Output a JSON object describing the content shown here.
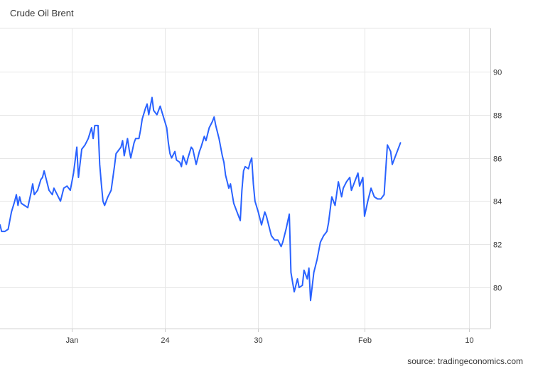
{
  "title": "Crude Oil Brent",
  "source": "source: tradingeconomics.com",
  "colors": {
    "line": "#2962ff",
    "grid": "#e6e6e6",
    "text": "#333333",
    "axis": "#cccccc"
  },
  "chart_data": {
    "type": "line",
    "title": "Crude Oil Brent",
    "xlabel": "",
    "ylabel": "",
    "ylim": [
      78.1,
      92
    ],
    "yticks": [
      80,
      82,
      84,
      86,
      88,
      90
    ],
    "ytick_labels": [
      "80",
      "82",
      "84",
      "86",
      "88",
      "90"
    ],
    "xlim": [
      0,
      30
    ],
    "xtick_labels": [
      {
        "x": 4.4,
        "label": "Jan"
      },
      {
        "x": 10.1,
        "label": "24"
      },
      {
        "x": 15.8,
        "label": "30"
      },
      {
        "x": 22.3,
        "label": "Feb"
      },
      {
        "x": 28.7,
        "label": "10"
      }
    ],
    "grid": true,
    "series": [
      {
        "values": [
          [
            0.0,
            82.9
          ],
          [
            0.1,
            82.6
          ],
          [
            0.3,
            82.6
          ],
          [
            0.5,
            82.7
          ],
          [
            0.7,
            83.5
          ],
          [
            0.9,
            84.0
          ],
          [
            1.0,
            84.3
          ],
          [
            1.1,
            83.8
          ],
          [
            1.2,
            84.2
          ],
          [
            1.3,
            83.9
          ],
          [
            1.5,
            83.8
          ],
          [
            1.7,
            83.7
          ],
          [
            1.9,
            84.4
          ],
          [
            2.0,
            84.8
          ],
          [
            2.1,
            84.3
          ],
          [
            2.3,
            84.5
          ],
          [
            2.5,
            85.0
          ],
          [
            2.6,
            85.1
          ],
          [
            2.7,
            85.4
          ],
          [
            2.9,
            84.8
          ],
          [
            3.0,
            84.5
          ],
          [
            3.2,
            84.3
          ],
          [
            3.3,
            84.6
          ],
          [
            3.5,
            84.3
          ],
          [
            3.7,
            84.0
          ],
          [
            3.9,
            84.6
          ],
          [
            4.1,
            84.7
          ],
          [
            4.3,
            84.5
          ],
          [
            4.5,
            85.3
          ],
          [
            4.7,
            86.5
          ],
          [
            4.8,
            85.1
          ],
          [
            5.0,
            86.4
          ],
          [
            5.2,
            86.6
          ],
          [
            5.4,
            86.9
          ],
          [
            5.6,
            87.4
          ],
          [
            5.7,
            86.9
          ],
          [
            5.8,
            87.5
          ],
          [
            6.0,
            87.5
          ],
          [
            6.1,
            85.7
          ],
          [
            6.2,
            84.8
          ],
          [
            6.3,
            84.0
          ],
          [
            6.4,
            83.8
          ],
          [
            6.6,
            84.2
          ],
          [
            6.8,
            84.5
          ],
          [
            7.0,
            85.6
          ],
          [
            7.1,
            86.2
          ],
          [
            7.3,
            86.4
          ],
          [
            7.4,
            86.5
          ],
          [
            7.5,
            86.8
          ],
          [
            7.6,
            86.1
          ],
          [
            7.8,
            86.9
          ],
          [
            7.9,
            86.4
          ],
          [
            8.0,
            86.0
          ],
          [
            8.2,
            86.7
          ],
          [
            8.3,
            86.9
          ],
          [
            8.5,
            86.9
          ],
          [
            8.6,
            87.3
          ],
          [
            8.7,
            87.8
          ],
          [
            8.9,
            88.3
          ],
          [
            9.0,
            88.5
          ],
          [
            9.1,
            88.0
          ],
          [
            9.3,
            88.8
          ],
          [
            9.4,
            88.2
          ],
          [
            9.6,
            88.0
          ],
          [
            9.8,
            88.4
          ],
          [
            10.0,
            87.9
          ],
          [
            10.2,
            87.4
          ],
          [
            10.3,
            86.7
          ],
          [
            10.4,
            86.2
          ],
          [
            10.5,
            86.0
          ],
          [
            10.7,
            86.3
          ],
          [
            10.8,
            85.9
          ],
          [
            11.0,
            85.8
          ],
          [
            11.1,
            85.6
          ],
          [
            11.2,
            86.1
          ],
          [
            11.4,
            85.7
          ],
          [
            11.5,
            86.0
          ],
          [
            11.7,
            86.5
          ],
          [
            11.8,
            86.4
          ],
          [
            12.0,
            85.7
          ],
          [
            12.2,
            86.3
          ],
          [
            12.3,
            86.5
          ],
          [
            12.5,
            87.0
          ],
          [
            12.6,
            86.8
          ],
          [
            12.8,
            87.4
          ],
          [
            13.0,
            87.7
          ],
          [
            13.1,
            87.9
          ],
          [
            13.2,
            87.5
          ],
          [
            13.4,
            86.9
          ],
          [
            13.6,
            86.1
          ],
          [
            13.7,
            85.8
          ],
          [
            13.8,
            85.2
          ],
          [
            14.0,
            84.6
          ],
          [
            14.1,
            84.8
          ],
          [
            14.3,
            83.9
          ],
          [
            14.5,
            83.5
          ],
          [
            14.7,
            83.1
          ],
          [
            14.8,
            84.5
          ],
          [
            14.9,
            85.4
          ],
          [
            15.0,
            85.6
          ],
          [
            15.2,
            85.5
          ],
          [
            15.3,
            85.8
          ],
          [
            15.4,
            86.0
          ],
          [
            15.5,
            84.8
          ],
          [
            15.6,
            84.0
          ],
          [
            15.8,
            83.5
          ],
          [
            16.0,
            82.9
          ],
          [
            16.2,
            83.5
          ],
          [
            16.3,
            83.3
          ],
          [
            16.4,
            83.0
          ],
          [
            16.6,
            82.4
          ],
          [
            16.8,
            82.2
          ],
          [
            17.0,
            82.2
          ],
          [
            17.2,
            81.9
          ],
          [
            17.3,
            82.1
          ],
          [
            17.5,
            82.7
          ],
          [
            17.7,
            83.4
          ],
          [
            17.8,
            80.7
          ],
          [
            18.0,
            79.8
          ],
          [
            18.2,
            80.4
          ],
          [
            18.3,
            80.0
          ],
          [
            18.5,
            80.1
          ],
          [
            18.6,
            80.8
          ],
          [
            18.8,
            80.4
          ],
          [
            18.9,
            80.9
          ],
          [
            19.0,
            79.4
          ],
          [
            19.2,
            80.7
          ],
          [
            19.4,
            81.3
          ],
          [
            19.6,
            82.1
          ],
          [
            19.8,
            82.4
          ],
          [
            20.0,
            82.6
          ],
          [
            20.1,
            83.0
          ],
          [
            20.3,
            84.2
          ],
          [
            20.5,
            83.8
          ],
          [
            20.7,
            84.9
          ],
          [
            20.9,
            84.2
          ],
          [
            21.0,
            84.6
          ],
          [
            21.2,
            84.9
          ],
          [
            21.4,
            85.1
          ],
          [
            21.5,
            84.5
          ],
          [
            21.7,
            84.9
          ],
          [
            21.9,
            85.3
          ],
          [
            22.0,
            84.7
          ],
          [
            22.2,
            85.1
          ],
          [
            22.3,
            83.3
          ],
          [
            22.5,
            84.0
          ],
          [
            22.7,
            84.6
          ],
          [
            22.9,
            84.2
          ],
          [
            23.1,
            84.1
          ],
          [
            23.3,
            84.1
          ],
          [
            23.5,
            84.3
          ],
          [
            23.7,
            86.6
          ],
          [
            23.9,
            86.3
          ],
          [
            24.0,
            85.7
          ],
          [
            24.2,
            86.1
          ],
          [
            24.3,
            86.3
          ],
          [
            24.5,
            86.7
          ]
        ]
      }
    ]
  }
}
